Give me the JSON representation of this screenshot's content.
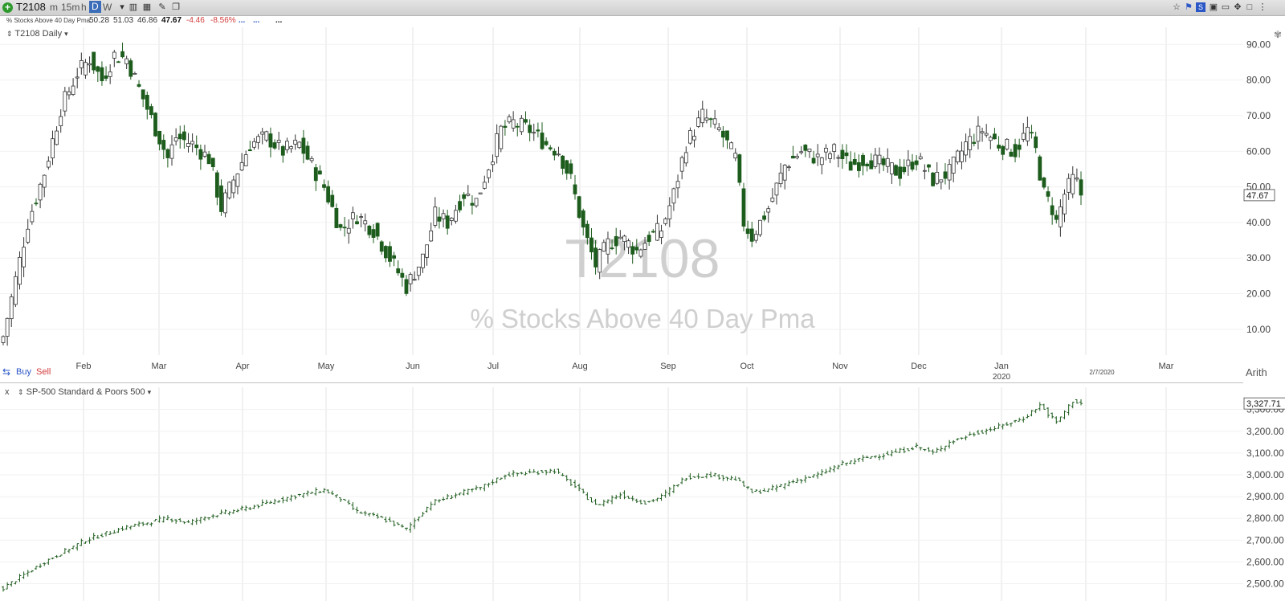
{
  "toolbar": {
    "symbol": "T2108",
    "intervals": [
      "m",
      "15m",
      "h",
      "D",
      "W"
    ],
    "active_interval": "D"
  },
  "quote": {
    "name": "% Stocks Above 40 Day Pma",
    "open": "50.28",
    "high": "51.03",
    "low": "46.86",
    "last": "47.67",
    "change": "-4.46",
    "change_pct": "-8.56%",
    "dots": [
      "...",
      "...",
      "..."
    ]
  },
  "colors": {
    "candle_up_border": "#333333",
    "candle_down": "#1d5c1d",
    "bar": "#1d5c1d",
    "negative": "#d23a3a",
    "watermark": "#c9c9c9"
  },
  "pane1": {
    "title": "T2108 Daily",
    "last_label": "47.67",
    "watermark_symbol": "T2108",
    "watermark_name": "% Stocks Above 40 Day Pma",
    "buy_label": "Buy",
    "sell_label": "Sell",
    "scale_label": "Arith"
  },
  "pane2": {
    "title": "SP-500 Standard & Poors 500",
    "last_label": "3,327.71",
    "close_label": "x"
  },
  "x_axis": {
    "months": [
      "Feb",
      "Mar",
      "Apr",
      "May",
      "Jun",
      "Jul",
      "Aug",
      "Sep",
      "Oct",
      "Nov",
      "Dec",
      "Jan",
      "Mar"
    ],
    "year_label": "2020",
    "date_label": "2/7/2020"
  },
  "chart_data": [
    {
      "type": "candlestick",
      "title": "T2108 Daily",
      "ylim": [
        5,
        93
      ],
      "y_ticks": [
        "10.00",
        "20.00",
        "30.00",
        "40.00",
        "50.00",
        "60.00",
        "70.00",
        "80.00",
        "90.00"
      ],
      "anchors": [
        [
          0,
          8
        ],
        [
          6,
          40
        ],
        [
          10,
          54
        ],
        [
          14,
          72
        ],
        [
          18,
          82
        ],
        [
          21,
          86
        ],
        [
          24,
          80
        ],
        [
          27,
          87
        ],
        [
          30,
          86
        ],
        [
          35,
          72
        ],
        [
          40,
          58
        ],
        [
          42,
          64
        ],
        [
          46,
          62
        ],
        [
          50,
          58
        ],
        [
          53,
          44
        ],
        [
          56,
          52
        ],
        [
          60,
          62
        ],
        [
          64,
          64
        ],
        [
          68,
          60
        ],
        [
          72,
          62
        ],
        [
          75,
          56
        ],
        [
          78,
          50
        ],
        [
          82,
          38
        ],
        [
          86,
          42
        ],
        [
          90,
          38
        ],
        [
          94,
          30
        ],
        [
          98,
          22
        ],
        [
          102,
          30
        ],
        [
          105,
          42
        ],
        [
          108,
          40
        ],
        [
          112,
          48
        ],
        [
          115,
          46
        ],
        [
          118,
          56
        ],
        [
          121,
          66
        ],
        [
          124,
          68
        ],
        [
          128,
          66
        ],
        [
          132,
          62
        ],
        [
          135,
          60
        ],
        [
          138,
          52
        ],
        [
          141,
          38
        ],
        [
          144,
          28
        ],
        [
          147,
          34
        ],
        [
          150,
          36
        ],
        [
          154,
          32
        ],
        [
          157,
          36
        ],
        [
          160,
          38
        ],
        [
          163,
          48
        ],
        [
          166,
          62
        ],
        [
          170,
          70
        ],
        [
          174,
          66
        ],
        [
          178,
          58
        ],
        [
          180,
          40
        ],
        [
          182,
          36
        ],
        [
          184,
          40
        ],
        [
          186,
          44
        ],
        [
          190,
          56
        ],
        [
          194,
          60
        ],
        [
          198,
          58
        ],
        [
          202,
          60
        ],
        [
          206,
          56
        ],
        [
          210,
          58
        ],
        [
          214,
          56
        ],
        [
          218,
          54
        ],
        [
          222,
          58
        ],
        [
          226,
          52
        ],
        [
          230,
          54
        ],
        [
          234,
          62
        ],
        [
          238,
          66
        ],
        [
          242,
          62
        ],
        [
          246,
          60
        ],
        [
          249,
          66
        ],
        [
          251,
          60
        ],
        [
          253,
          48
        ],
        [
          255,
          44
        ],
        [
          256,
          40
        ],
        [
          258,
          48
        ],
        [
          260,
          52
        ],
        [
          262,
          50
        ]
      ],
      "last": 47.67
    },
    {
      "type": "ohlc",
      "title": "SP-500 Standard & Poors 500",
      "ylim": [
        2450,
        3380
      ],
      "y_ticks": [
        "2,500.00",
        "2,600.00",
        "2,700.00",
        "2,800.00",
        "2,900.00",
        "3,000.00",
        "3,100.00",
        "3,200.00",
        "3,300.00"
      ],
      "anchors": [
        [
          0,
          2480
        ],
        [
          10,
          2600
        ],
        [
          20,
          2700
        ],
        [
          30,
          2760
        ],
        [
          40,
          2800
        ],
        [
          45,
          2780
        ],
        [
          50,
          2810
        ],
        [
          60,
          2850
        ],
        [
          70,
          2900
        ],
        [
          78,
          2930
        ],
        [
          82,
          2890
        ],
        [
          86,
          2830
        ],
        [
          92,
          2800
        ],
        [
          98,
          2750
        ],
        [
          104,
          2870
        ],
        [
          110,
          2910
        ],
        [
          116,
          2940
        ],
        [
          122,
          3000
        ],
        [
          128,
          3010
        ],
        [
          134,
          3020
        ],
        [
          140,
          2930
        ],
        [
          144,
          2860
        ],
        [
          150,
          2910
        ],
        [
          156,
          2870
        ],
        [
          160,
          2900
        ],
        [
          166,
          2990
        ],
        [
          172,
          3000
        ],
        [
          178,
          2980
        ],
        [
          182,
          2920
        ],
        [
          186,
          2930
        ],
        [
          192,
          2970
        ],
        [
          198,
          3000
        ],
        [
          204,
          3050
        ],
        [
          210,
          3080
        ],
        [
          216,
          3100
        ],
        [
          222,
          3130
        ],
        [
          226,
          3100
        ],
        [
          230,
          3150
        ],
        [
          236,
          3190
        ],
        [
          242,
          3220
        ],
        [
          248,
          3260
        ],
        [
          252,
          3320
        ],
        [
          254,
          3280
        ],
        [
          256,
          3240
        ],
        [
          258,
          3290
        ],
        [
          260,
          3340
        ],
        [
          262,
          3327.71
        ]
      ],
      "last": 3327.71
    }
  ]
}
